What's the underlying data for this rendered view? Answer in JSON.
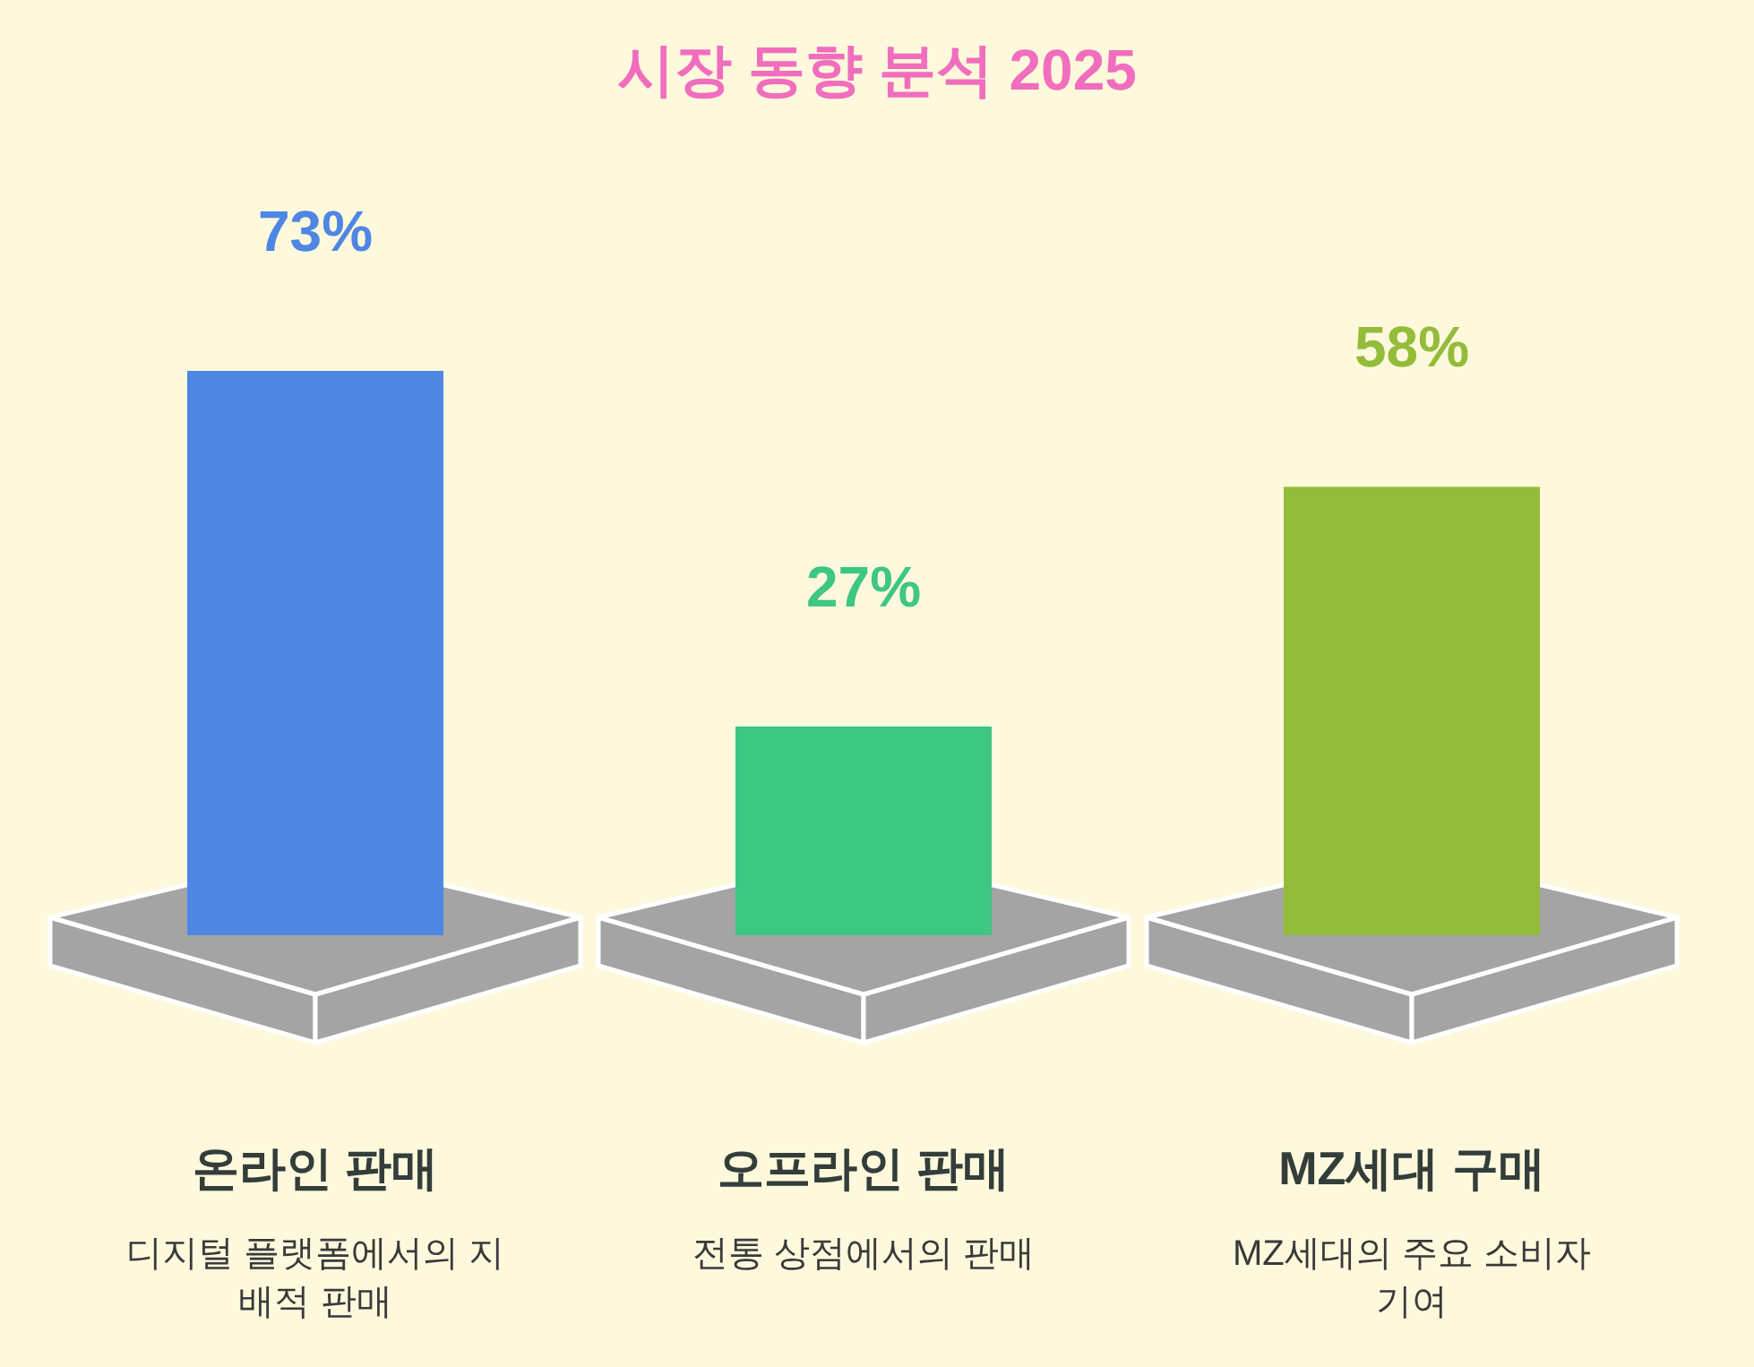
{
  "chart_data": {
    "type": "bar",
    "title": "시장 동향 분석 2025",
    "categories": [
      "온라인 판매",
      "오프라인 판매",
      "MZ세대 구매"
    ],
    "values": [
      73,
      27,
      58
    ],
    "colors": [
      "#4e86e4",
      "#3ec683",
      "#93bc3a"
    ],
    "value_labels": [
      "73%",
      "27%",
      "58%"
    ],
    "annotations": [
      "디지털 플랫폼에서의 지배적 판매",
      "전통 상점에서의 판매",
      "MZ세대의 주요 소비자 기여"
    ]
  }
}
